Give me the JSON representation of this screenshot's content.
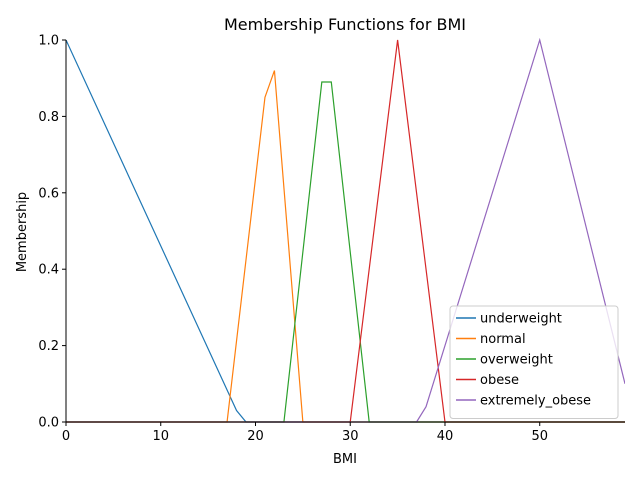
{
  "chart_data": {
    "type": "line",
    "title": "Membership Functions for BMI",
    "xlabel": "BMI",
    "ylabel": "Membership",
    "xlim": [
      0,
      59
    ],
    "ylim": [
      0,
      1.0
    ],
    "xticks": [
      0,
      10,
      20,
      30,
      40,
      50
    ],
    "yticks": [
      0.0,
      0.2,
      0.4,
      0.6,
      0.8,
      1.0
    ],
    "xtick_labels": [
      "0",
      "10",
      "20",
      "30",
      "40",
      "50"
    ],
    "ytick_labels": [
      "0.0",
      "0.2",
      "0.4",
      "0.6",
      "0.8",
      "1.0"
    ],
    "grid": false,
    "legend_position": "bottom-right",
    "series": [
      {
        "name": "underweight",
        "color": "#1f77b4",
        "points": [
          [
            0,
            1.0
          ],
          [
            18,
            0.03
          ],
          [
            19,
            0.0
          ],
          [
            59,
            0.0
          ]
        ]
      },
      {
        "name": "normal",
        "color": "#ff7f0e",
        "points": [
          [
            0,
            0.0
          ],
          [
            17,
            0.0
          ],
          [
            21,
            0.85
          ],
          [
            22,
            0.92
          ],
          [
            25,
            0.0
          ],
          [
            59,
            0.0
          ]
        ]
      },
      {
        "name": "overweight",
        "color": "#2ca02c",
        "points": [
          [
            0,
            0.0
          ],
          [
            23,
            0.0
          ],
          [
            27,
            0.89
          ],
          [
            28,
            0.89
          ],
          [
            32,
            0.0
          ],
          [
            59,
            0.0
          ]
        ]
      },
      {
        "name": "obese",
        "color": "#d62728",
        "points": [
          [
            0,
            0.0
          ],
          [
            30,
            0.0
          ],
          [
            35,
            1.0
          ],
          [
            40,
            0.0
          ],
          [
            59,
            0.0
          ]
        ]
      },
      {
        "name": "extremely_obese",
        "color": "#9467bd",
        "points": [
          [
            0,
            0.0
          ],
          [
            37,
            0.0
          ],
          [
            38,
            0.04
          ],
          [
            50,
            1.0
          ],
          [
            59,
            0.1
          ]
        ]
      }
    ]
  }
}
